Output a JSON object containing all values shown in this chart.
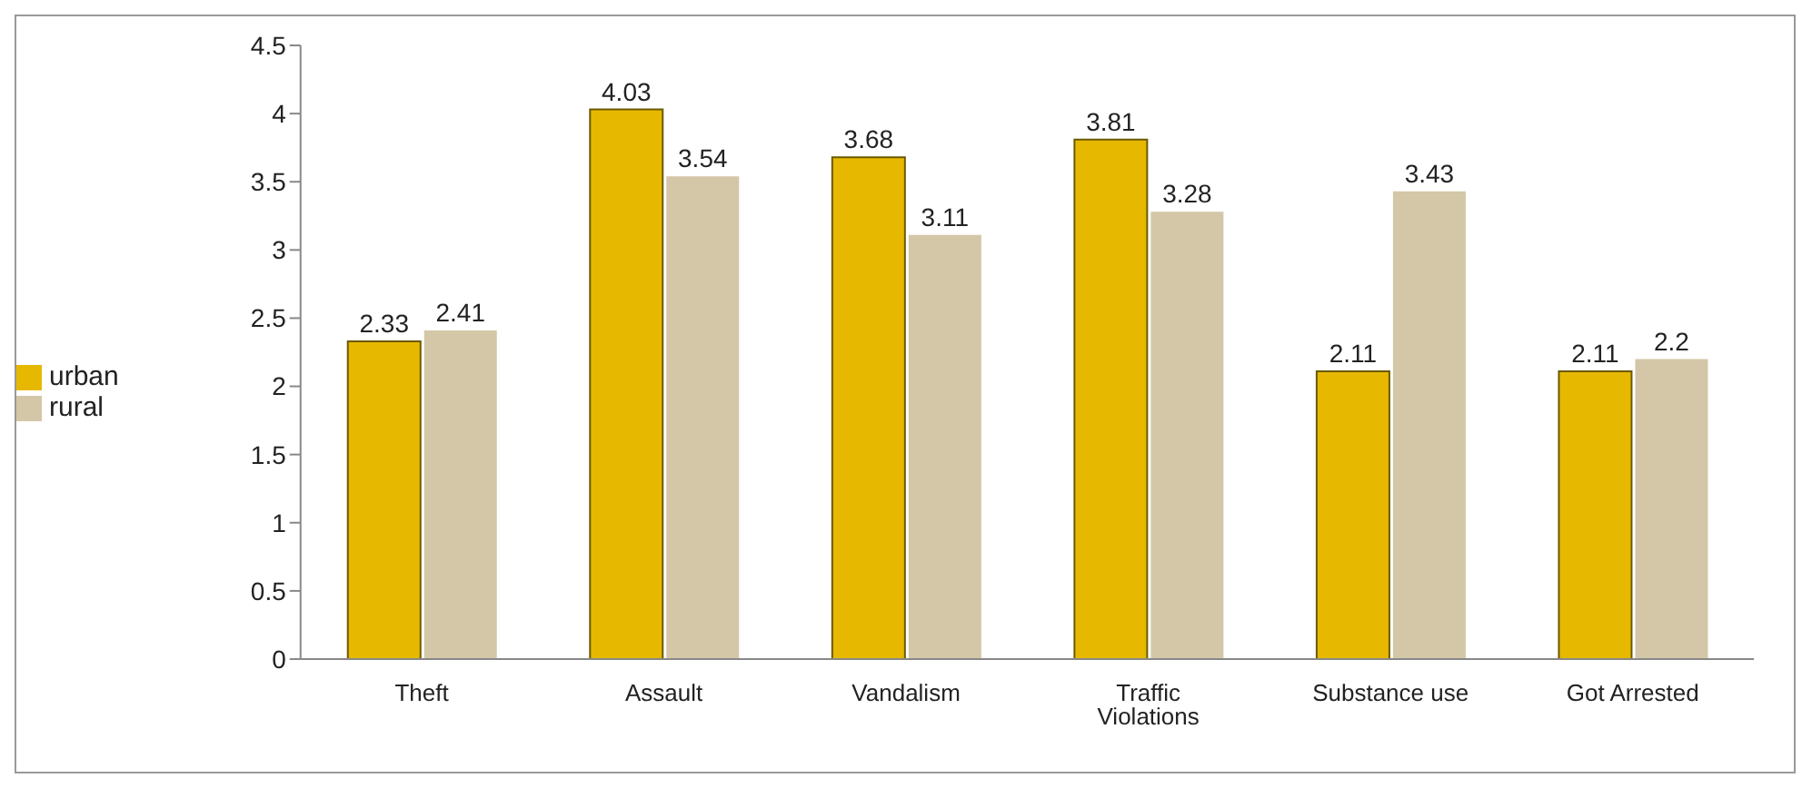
{
  "chart_data": {
    "type": "bar",
    "categories": [
      "Theft",
      "Assault",
      "Vandalism",
      "Traffic Violations",
      "Substance use",
      "Got Arrested"
    ],
    "series": [
      {
        "name": "urban",
        "color": "#e6b800",
        "values": [
          2.33,
          4.03,
          3.68,
          3.81,
          2.11,
          2.11
        ]
      },
      {
        "name": "rural",
        "color": "#d3c7a8",
        "values": [
          2.41,
          3.54,
          3.11,
          3.28,
          3.43,
          2.2
        ]
      }
    ],
    "ylim": [
      0,
      4.5
    ],
    "yticks": [
      0,
      0.5,
      1,
      1.5,
      2,
      2.5,
      3,
      3.5,
      4,
      4.5
    ],
    "legend": "left",
    "data_labels": true
  }
}
